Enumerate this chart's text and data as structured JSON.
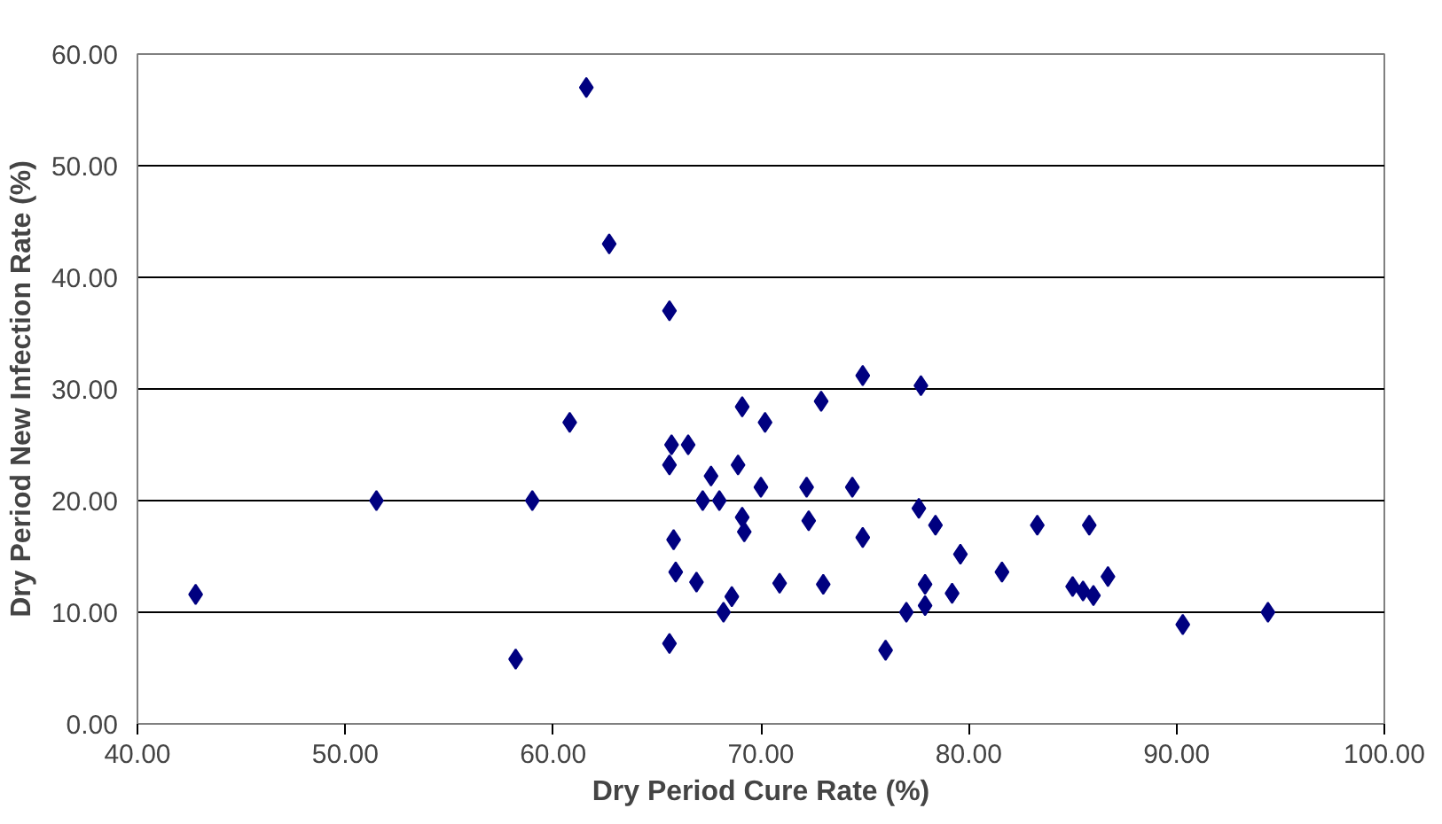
{
  "chart_data": {
    "type": "scatter",
    "xlabel": "Dry Period Cure Rate (%)",
    "ylabel": "Dry Period New Infection Rate (%)",
    "x": [
      42.8,
      51.5,
      58.2,
      59.0,
      60.8,
      61.6,
      62.7,
      65.6,
      65.7,
      65.6,
      65.8,
      65.9,
      65.6,
      66.5,
      66.9,
      67.2,
      67.6,
      68.0,
      68.2,
      68.6,
      68.9,
      69.1,
      69.1,
      69.2,
      70.2,
      70.0,
      70.9,
      72.2,
      72.3,
      72.9,
      73.0,
      74.4,
      74.9,
      74.9,
      76.0,
      77.0,
      77.6,
      77.7,
      77.9,
      77.9,
      78.4,
      79.2,
      79.6,
      81.6,
      83.3,
      85.0,
      85.5,
      85.8,
      86.0,
      86.7,
      90.3,
      94.4
    ],
    "series": [
      {
        "color": "#000080",
        "values": [
          11.6,
          20.0,
          5.8,
          20.0,
          27.0,
          57.0,
          43.0,
          37.0,
          25.0,
          23.2,
          16.5,
          13.6,
          7.2,
          25.0,
          12.7,
          20.0,
          22.2,
          20.0,
          10.0,
          11.4,
          23.2,
          28.4,
          18.5,
          17.2,
          27.0,
          21.2,
          12.6,
          21.2,
          18.2,
          28.9,
          12.5,
          21.2,
          31.2,
          16.7,
          6.6,
          10.0,
          19.3,
          30.3,
          12.5,
          10.6,
          17.8,
          11.7,
          15.2,
          13.6,
          17.8,
          12.3,
          11.9,
          17.8,
          11.5,
          13.2,
          8.9,
          10.0
        ]
      }
    ],
    "marker": "diamond",
    "grid": "y",
    "xlim": [
      40,
      100
    ],
    "xticks": [
      {
        "value": 40,
        "label": "40.00"
      },
      {
        "value": 50,
        "label": "50.00"
      },
      {
        "value": 60,
        "label": "60.00"
      },
      {
        "value": 70,
        "label": "70.00"
      },
      {
        "value": 80,
        "label": "80.00"
      },
      {
        "value": 90,
        "label": "90.00"
      },
      {
        "value": 100,
        "label": "100.00"
      }
    ],
    "ylim": [
      0,
      60
    ],
    "yticks": [
      {
        "value": 0,
        "label": "0.00"
      },
      {
        "value": 10,
        "label": "10.00"
      },
      {
        "value": 20,
        "label": "20.00"
      },
      {
        "value": 30,
        "label": "30.00"
      },
      {
        "value": 40,
        "label": "40.00"
      },
      {
        "value": 50,
        "label": "50.00"
      },
      {
        "value": 60,
        "label": "60.00"
      }
    ]
  }
}
